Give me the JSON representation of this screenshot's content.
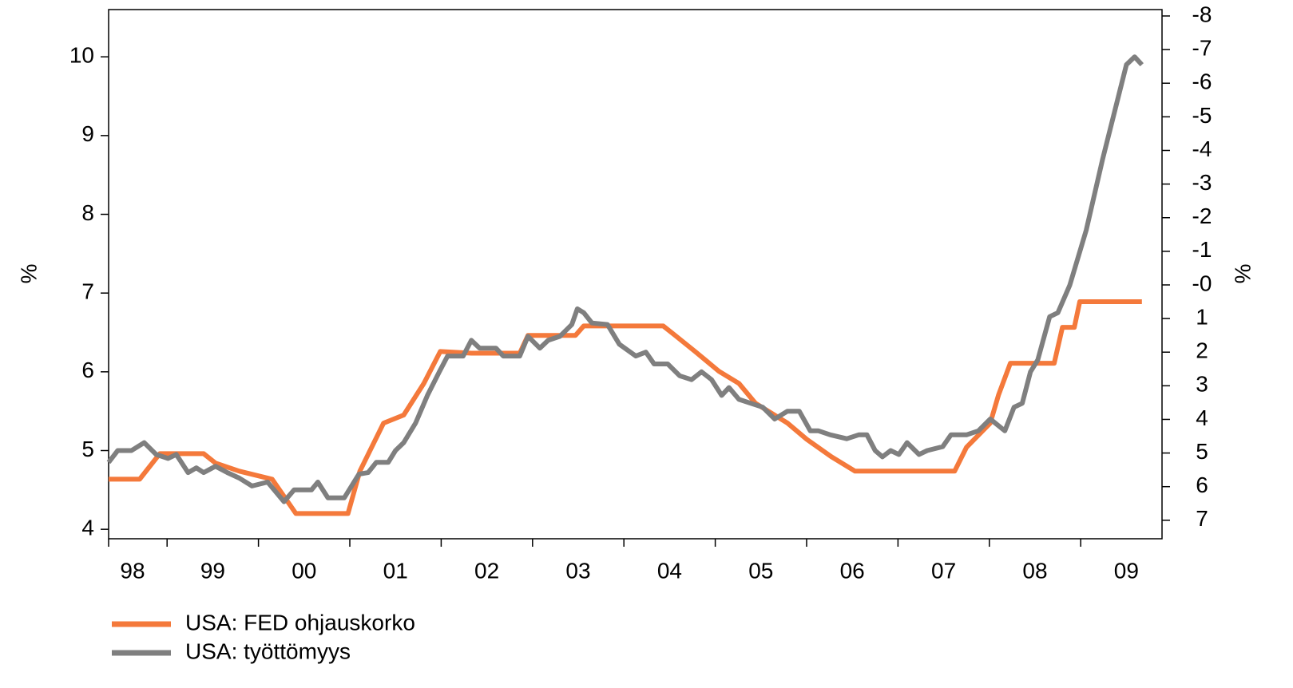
{
  "chart_data": {
    "type": "line",
    "y_label": "%",
    "y2_label": "%",
    "xlim": [
      1998.36,
      2009.89
    ],
    "xticks": [
      {
        "value": 1998.5,
        "label": "98"
      },
      {
        "value": 1999.5,
        "label": "99"
      },
      {
        "value": 2000.5,
        "label": "00"
      },
      {
        "value": 2001.5,
        "label": "01"
      },
      {
        "value": 2002.5,
        "label": "02"
      },
      {
        "value": 2003.5,
        "label": "03"
      },
      {
        "value": 2004.5,
        "label": "04"
      },
      {
        "value": 2005.5,
        "label": "05"
      },
      {
        "value": 2006.5,
        "label": "06"
      },
      {
        "value": 2007.5,
        "label": "07"
      },
      {
        "value": 2008.5,
        "label": "08"
      },
      {
        "value": 2009.5,
        "label": "09"
      }
    ],
    "ylim": [
      3.88,
      10.6
    ],
    "yticks": [
      4,
      5,
      6,
      7,
      8,
      9,
      10
    ],
    "y2lim": [
      7.55,
      -8.19
    ],
    "y2_inverted": true,
    "y2ticks": [
      -8,
      -7,
      -6,
      -5,
      -4,
      -3,
      -2,
      -1,
      {
        "value": 0,
        "label": "-0"
      },
      1,
      2,
      3,
      4,
      5,
      6,
      7
    ],
    "series": [
      {
        "name": "USA: FED ohjauskorko",
        "color": "#f4793b",
        "axis": "y2",
        "x": [
          1998.36,
          1998.7,
          1998.92,
          1999.4,
          1999.53,
          1999.79,
          2000.15,
          2000.41,
          2000.98,
          2001.11,
          2001.37,
          2001.59,
          2001.81,
          2001.99,
          2002.33,
          2002.86,
          2002.95,
          2003.47,
          2003.56,
          2004.43,
          2004.56,
          2004.78,
          2005.04,
          2005.26,
          2005.44,
          2005.79,
          2006.0,
          2006.27,
          2006.53,
          2006.79,
          2007.62,
          2007.75,
          2008.01,
          2008.1,
          2008.23,
          2008.71,
          2008.8,
          2008.93,
          2008.99,
          2009.67
        ],
        "values": [
          5.78,
          5.78,
          5.02,
          5.02,
          5.3,
          5.54,
          5.78,
          6.8,
          6.8,
          5.54,
          4.11,
          3.87,
          2.93,
          1.98,
          2.03,
          2.03,
          1.5,
          1.5,
          1.22,
          1.22,
          1.5,
          1.98,
          2.57,
          2.93,
          3.52,
          4.11,
          4.59,
          5.11,
          5.54,
          5.54,
          5.54,
          4.83,
          4.11,
          3.28,
          2.33,
          2.33,
          1.26,
          1.26,
          0.5,
          0.5
        ]
      },
      {
        "name": "USA: työttömyys",
        "color": "#7f7f7f",
        "axis": "y",
        "x": [
          1998.36,
          1998.46,
          1998.61,
          1998.75,
          1998.88,
          1999.01,
          1999.1,
          1999.23,
          1999.32,
          1999.4,
          1999.53,
          1999.66,
          1999.79,
          1999.93,
          2000.1,
          2000.28,
          2000.39,
          2000.58,
          2000.65,
          2000.76,
          2000.94,
          2001.1,
          2001.2,
          2001.29,
          2001.42,
          2001.5,
          2001.59,
          2001.72,
          2001.85,
          2001.98,
          2002.07,
          2002.24,
          2002.33,
          2002.42,
          2002.6,
          2002.68,
          2002.86,
          2002.95,
          2003.08,
          2003.17,
          2003.3,
          2003.43,
          2003.49,
          2003.56,
          2003.65,
          2003.82,
          2003.95,
          2004.13,
          2004.24,
          2004.33,
          2004.48,
          2004.61,
          2004.74,
          2004.85,
          2004.96,
          2005.07,
          2005.15,
          2005.26,
          2005.39,
          2005.52,
          2005.65,
          2005.79,
          2005.92,
          2006.04,
          2006.13,
          2006.26,
          2006.44,
          2006.57,
          2006.66,
          2006.75,
          2006.83,
          2006.92,
          2007.01,
          2007.1,
          2007.23,
          2007.32,
          2007.49,
          2007.58,
          2007.75,
          2007.88,
          2008.01,
          2008.17,
          2008.27,
          2008.36,
          2008.45,
          2008.53,
          2008.66,
          2008.75,
          2008.88,
          2009.06,
          2009.24,
          2009.37,
          2009.5,
          2009.59,
          2009.67
        ],
        "values": [
          4.85,
          5.0,
          5.0,
          5.1,
          4.95,
          4.9,
          4.95,
          4.72,
          4.78,
          4.72,
          4.8,
          4.72,
          4.65,
          4.55,
          4.6,
          4.35,
          4.5,
          4.5,
          4.6,
          4.4,
          4.4,
          4.7,
          4.72,
          4.85,
          4.85,
          5.0,
          5.1,
          5.35,
          5.7,
          6.0,
          6.2,
          6.2,
          6.4,
          6.3,
          6.3,
          6.2,
          6.2,
          6.45,
          6.3,
          6.4,
          6.45,
          6.6,
          6.8,
          6.75,
          6.62,
          6.6,
          6.35,
          6.2,
          6.25,
          6.1,
          6.1,
          5.95,
          5.9,
          6.0,
          5.9,
          5.7,
          5.8,
          5.65,
          5.6,
          5.55,
          5.4,
          5.5,
          5.5,
          5.25,
          5.25,
          5.2,
          5.15,
          5.2,
          5.2,
          5.0,
          4.92,
          5.0,
          4.95,
          5.1,
          4.95,
          5.0,
          5.05,
          5.2,
          5.2,
          5.25,
          5.4,
          5.25,
          5.55,
          5.6,
          6.0,
          6.15,
          6.7,
          6.75,
          7.1,
          7.8,
          8.7,
          9.3,
          9.9,
          10.0,
          9.9
        ]
      }
    ]
  }
}
